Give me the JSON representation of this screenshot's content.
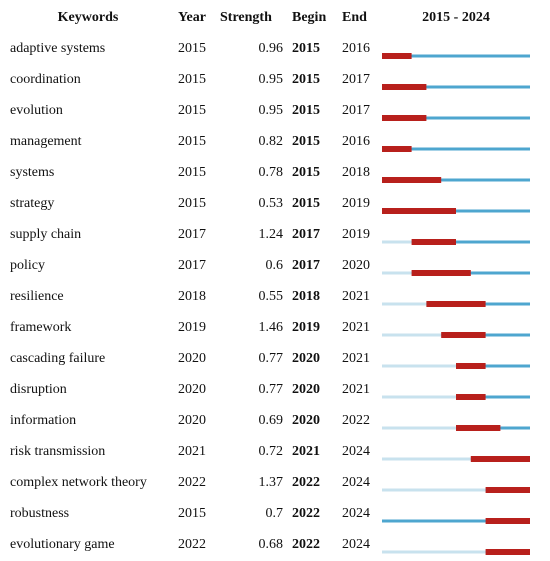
{
  "table": {
    "headers": [
      "Keywords",
      "Year",
      "Strength",
      "Begin",
      "End"
    ],
    "rows": [
      [
        "adaptive systems",
        2015,
        0.96,
        2015,
        2016
      ],
      [
        "coordination",
        2015,
        0.95,
        2015,
        2017
      ],
      [
        "evolution",
        2015,
        0.95,
        2015,
        2017
      ],
      [
        "management",
        2015,
        0.82,
        2015,
        2016
      ],
      [
        "systems",
        2015,
        0.78,
        2015,
        2018
      ],
      [
        "strategy",
        2015,
        0.53,
        2015,
        2019
      ],
      [
        "supply chain",
        2017,
        1.24,
        2017,
        2019
      ],
      [
        "policy",
        2017,
        0.6,
        2017,
        2020
      ],
      [
        "resilience",
        2018,
        0.55,
        2018,
        2021
      ],
      [
        "framework",
        2019,
        1.46,
        2019,
        2021
      ],
      [
        "cascading failure",
        2020,
        0.77,
        2020,
        2021
      ],
      [
        "disruption",
        2020,
        0.77,
        2020,
        2021
      ],
      [
        "information",
        2020,
        0.69,
        2020,
        2022
      ],
      [
        "risk transmission",
        2021,
        0.72,
        2021,
        2024
      ],
      [
        "complex network theory",
        2022,
        1.37,
        2022,
        2024
      ],
      [
        "robustness",
        2015,
        0.7,
        2022,
        2024
      ],
      [
        "evolutionary game",
        2022,
        0.68,
        2022,
        2024
      ]
    ]
  },
  "timeline": {
    "label": "2015 - 2024",
    "range": [
      2015,
      2024
    ],
    "before_color": "#c8e2ee",
    "after_color": "#4ea6cf",
    "burst_color": "#b8201c"
  }
}
